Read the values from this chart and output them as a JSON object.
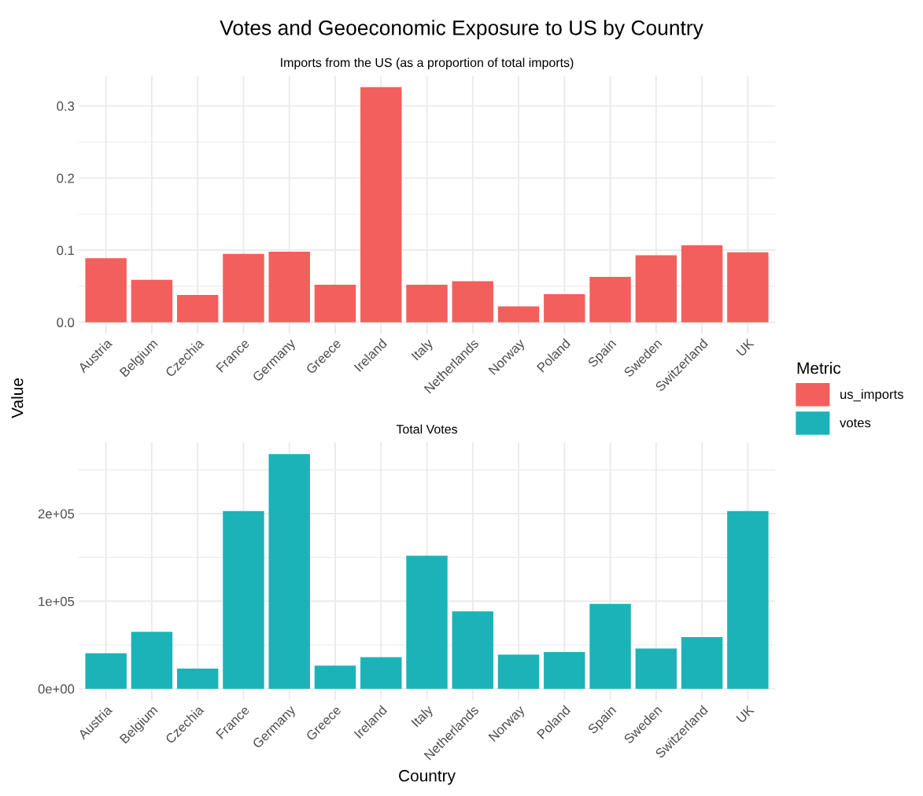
{
  "chart_data": [
    {
      "type": "bar",
      "title": "Votes and Geoeconomic Exposure to US by Country",
      "subtitle": "Imports from the US (as a proportion of total imports)",
      "ylabel": "Value",
      "legend_title": "Metric",
      "legend": "right",
      "grid": true,
      "categories": [
        "Austria",
        "Belgium",
        "Czechia",
        "France",
        "Germany",
        "Greece",
        "Ireland",
        "Italy",
        "Netherlands",
        "Norway",
        "Poland",
        "Spain",
        "Sweden",
        "Switzerland",
        "UK"
      ],
      "series": [
        {
          "name": "us_imports",
          "color": "#f35f5c",
          "values": [
            0.089,
            0.059,
            0.038,
            0.095,
            0.098,
            0.052,
            0.326,
            0.052,
            0.057,
            0.022,
            0.039,
            0.063,
            0.093,
            0.107,
            0.097
          ]
        }
      ],
      "ylim": [
        -0.016,
        0.342
      ],
      "yticks": [
        {
          "value": 0,
          "label": "0.0"
        },
        0.1,
        0.2,
        0.3
      ]
    },
    {
      "type": "bar",
      "subtitle": "Total Votes",
      "xlabel": "Country",
      "legend": "right",
      "grid": true,
      "categories": [
        "Austria",
        "Belgium",
        "Czechia",
        "France",
        "Germany",
        "Greece",
        "Ireland",
        "Italy",
        "Netherlands",
        "Norway",
        "Poland",
        "Spain",
        "Sweden",
        "Switzerland",
        "UK"
      ],
      "series": [
        {
          "name": "votes",
          "color": "#1bb3b8",
          "values": [
            40500,
            65000,
            23000,
            203000,
            268000,
            26500,
            36000,
            152000,
            88500,
            39000,
            42000,
            97000,
            46000,
            59000,
            203000
          ]
        }
      ],
      "ylim": [
        -13400,
        281500
      ],
      "yticks": [
        {
          "value": 0,
          "label": "0e+00"
        },
        {
          "value": 100000,
          "label": "1e+05"
        },
        {
          "value": 200000,
          "label": "2e+05"
        }
      ]
    }
  ]
}
